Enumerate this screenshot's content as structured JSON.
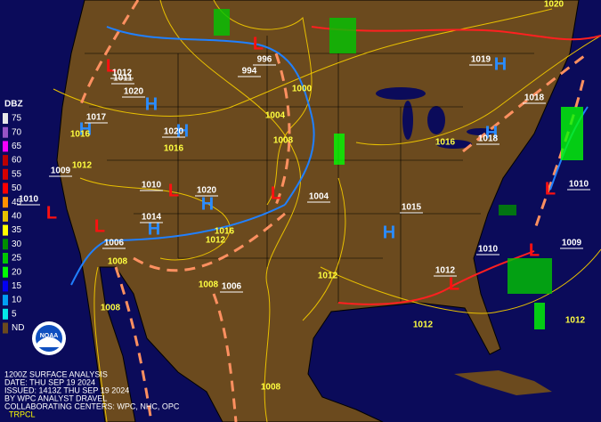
{
  "legend": {
    "title": "DBZ",
    "items": [
      {
        "label": "75",
        "color": "#e8e8e8"
      },
      {
        "label": "70",
        "color": "#9854c6"
      },
      {
        "label": "65",
        "color": "#f800fd"
      },
      {
        "label": "60",
        "color": "#bc0000"
      },
      {
        "label": "55",
        "color": "#d40000"
      },
      {
        "label": "50",
        "color": "#ff0000"
      },
      {
        "label": "45",
        "color": "#ff9000"
      },
      {
        "label": "40",
        "color": "#e7c000"
      },
      {
        "label": "35",
        "color": "#ffff00"
      },
      {
        "label": "30",
        "color": "#008e00"
      },
      {
        "label": "25",
        "color": "#01c501"
      },
      {
        "label": "20",
        "color": "#02fd02"
      },
      {
        "label": "15",
        "color": "#0300f4"
      },
      {
        "label": "10",
        "color": "#019ff4"
      },
      {
        "label": "5",
        "color": "#04e9e7"
      },
      {
        "label": "ND",
        "color": "#6b4a1e"
      }
    ]
  },
  "centers": [
    {
      "letter": "L",
      "pressure": "1011"
    },
    {
      "letter": "H",
      "pressure": "1020"
    },
    {
      "letter": "H",
      "pressure": "1017"
    },
    {
      "letter": "H",
      "pressure": "1020"
    },
    {
      "letter": "L",
      "pressure": "996"
    },
    {
      "letter": "H",
      "pressure": "1019"
    },
    {
      "letter": "H",
      "pressure": "1018"
    },
    {
      "letter": "L",
      "pressure": "1010"
    },
    {
      "letter": "H",
      "pressure": "1020"
    },
    {
      "letter": "H",
      "pressure": "1014"
    },
    {
      "letter": "L",
      "pressure": "1010"
    },
    {
      "letter": "L",
      "pressure": "1004"
    },
    {
      "letter": "H",
      "pressure": "1015"
    },
    {
      "letter": "L",
      "pressure": "1006"
    },
    {
      "letter": "L",
      "pressure": "1009"
    },
    {
      "letter": "L",
      "pressure": "1012"
    },
    {
      "letter": "L",
      "pressure": "1010"
    }
  ],
  "pressure_labels": [
    "994",
    "1018",
    "1009",
    "1006",
    "1010",
    "1012"
  ],
  "isobar_labels": [
    "1000",
    "1004",
    "1008",
    "1016",
    "1012",
    "1016",
    "1016",
    "1016",
    "1012",
    "1008",
    "1008",
    "1012",
    "1008",
    "1012",
    "1012",
    "1008",
    "1020"
  ],
  "logo": "NOAA",
  "footer": [
    "1200Z SURFACE ANALYSIS",
    "DATE: THU SEP 19 2024",
    "ISSUED: 1413Z THU SEP 19 2024",
    "BY WPC ANALYST DRAVEL",
    "COLLABORATING CENTERS: WPC, NHC, OPC"
  ],
  "tag": "TRPCL"
}
